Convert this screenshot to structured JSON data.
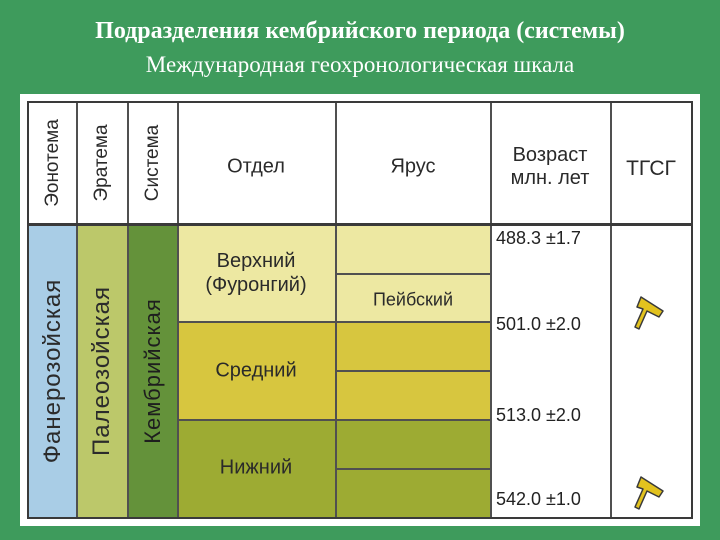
{
  "title": "Подразделения кембрийского периода (системы)",
  "subtitle": "Международная геохронологическая шкала",
  "headers": {
    "eonothem": "Эонотема",
    "erathem": "Эратема",
    "system": "Система",
    "series": "Отдел",
    "stage": "Ярус",
    "age_line1": "Возраст",
    "age_line2": "млн. лет",
    "gssp": "ТГСГ"
  },
  "units": {
    "eonothem": "Фанерозойская",
    "erathem": "Палеозойская",
    "system": "Кембрийская"
  },
  "series": [
    {
      "line1": "Верхний",
      "line2": "(Фуронгий)"
    },
    {
      "line1": "Средний",
      "line2": ""
    },
    {
      "line1": "Нижний",
      "line2": ""
    }
  ],
  "stages": [
    "",
    "Пейбский",
    "",
    "",
    "",
    ""
  ],
  "ages": [
    "488.3 ±1.7",
    "501.0 ±2.0",
    "513.0 ±2.0",
    "542.0 ±1.0"
  ],
  "gssp_marks": [
    "golden-spike",
    "golden-spike"
  ],
  "colors": {
    "background": "#3e9b5c",
    "eonothem": "#a9cde6",
    "erathem": "#bcc86a",
    "system": "#64923a",
    "upper": "#ede8a2",
    "middle": "#d7c63f",
    "lower": "#9dab33",
    "spike": "#e2c21e"
  }
}
